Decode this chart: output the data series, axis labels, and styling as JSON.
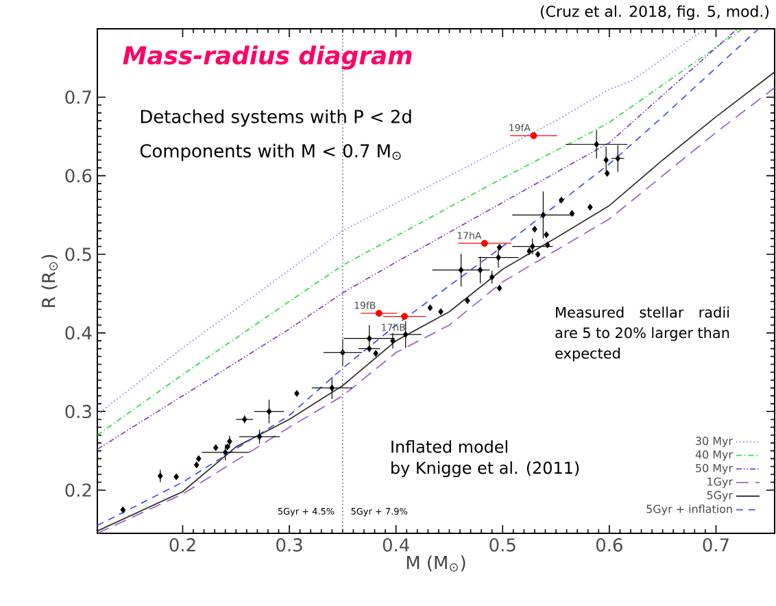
{
  "chart_data": {
    "type": "line",
    "title": "Mass-radius diagram",
    "xlabel": "M (M$_{⊙}$)",
    "ylabel": "R (R$_{⊙}$)",
    "xlim": [
      0.12,
      0.755
    ],
    "ylim": [
      0.145,
      0.787
    ],
    "xticks": [
      0.2,
      0.3,
      0.4,
      0.5,
      0.6,
      0.7
    ],
    "yticks": [
      0.2,
      0.3,
      0.4,
      0.5,
      0.6,
      0.7
    ],
    "grid": false,
    "legend": "bottom right",
    "series": [
      {
        "name": "30 Myr",
        "color": "#8080ff",
        "line_style": "dotted",
        "x": [
          0.12,
          0.2,
          0.3,
          0.35,
          0.45,
          0.5,
          0.55,
          0.6,
          0.62,
          0.69
        ],
        "values": [
          0.296,
          0.381,
          0.48,
          0.53,
          0.6,
          0.635,
          0.67,
          0.71,
          0.72,
          0.787
        ]
      },
      {
        "name": "40 Myr",
        "color": "#33dd44",
        "line_style": "dash-dot",
        "x": [
          0.12,
          0.2,
          0.3,
          0.35,
          0.45,
          0.5,
          0.58,
          0.6,
          0.725
        ],
        "values": [
          0.27,
          0.347,
          0.44,
          0.486,
          0.56,
          0.597,
          0.653,
          0.668,
          0.787
        ]
      },
      {
        "name": "50 Myr",
        "color": "#8844cc",
        "line_style": "dash-dot-dot",
        "x": [
          0.12,
          0.2,
          0.3,
          0.35,
          0.4,
          0.5,
          0.6,
          0.72
        ],
        "values": [
          0.252,
          0.32,
          0.405,
          0.451,
          0.49,
          0.566,
          0.642,
          0.787
        ]
      },
      {
        "name": "1Gyr",
        "color": "#9966cc",
        "line_style": "long-dashed",
        "x": [
          0.12,
          0.2,
          0.3,
          0.35,
          0.4,
          0.45,
          0.5,
          0.6,
          0.7,
          0.755
        ],
        "values": [
          0.145,
          0.195,
          0.28,
          0.32,
          0.375,
          0.41,
          0.465,
          0.545,
          0.655,
          0.712
        ]
      },
      {
        "name": "5Gyr",
        "color": "#333333",
        "line_style": "solid",
        "x": [
          0.12,
          0.2,
          0.25,
          0.3,
          0.35,
          0.4,
          0.45,
          0.5,
          0.55,
          0.6,
          0.65,
          0.7,
          0.755
        ],
        "values": [
          0.148,
          0.198,
          0.255,
          0.29,
          0.333,
          0.39,
          0.427,
          0.481,
          0.521,
          0.562,
          0.62,
          0.675,
          0.732
        ]
      },
      {
        "name": "5Gyr + inflation",
        "color": "#4455ee",
        "line_style": "dashed",
        "x": [
          0.12,
          0.2,
          0.3,
          0.35,
          0.4,
          0.5,
          0.6,
          0.65,
          0.74
        ],
        "values": [
          0.155,
          0.21,
          0.295,
          0.355,
          0.41,
          0.51,
          0.615,
          0.675,
          0.787
        ]
      },
      {
        "type": "scatter",
        "color": "#000000",
        "marker": "diamond",
        "x": [
          0.144,
          0.179,
          0.194,
          0.213,
          0.215,
          0.231,
          0.24,
          0.242,
          0.244,
          0.258,
          0.272,
          0.281,
          0.307,
          0.34,
          0.35,
          0.375,
          0.375,
          0.381,
          0.397,
          0.409,
          0.432,
          0.442,
          0.467,
          0.461,
          0.479,
          0.49,
          0.497,
          0.496,
          0.497,
          0.525,
          0.528,
          0.533,
          0.53,
          0.541,
          0.542,
          0.538,
          0.555,
          0.565,
          0.582,
          0.588,
          0.597,
          0.598,
          0.608
        ],
        "values": [
          0.175,
          0.218,
          0.217,
          0.232,
          0.24,
          0.254,
          0.248,
          0.255,
          0.262,
          0.29,
          0.268,
          0.3,
          0.323,
          0.33,
          0.375,
          0.393,
          0.38,
          0.374,
          0.39,
          0.398,
          0.432,
          0.427,
          0.441,
          0.48,
          0.48,
          0.471,
          0.457,
          0.496,
          0.509,
          0.504,
          0.51,
          0.5,
          0.532,
          0.525,
          0.512,
          0.55,
          0.569,
          0.552,
          0.56,
          0.64,
          0.62,
          0.603,
          0.622
        ],
        "xerrors": [
          null,
          null,
          null,
          null,
          null,
          null,
          0.022,
          null,
          null,
          0.008,
          0.019,
          0.014,
          null,
          0.019,
          0.018,
          0.024,
          0.01,
          null,
          null,
          0.015,
          null,
          null,
          null,
          0.027,
          null,
          null,
          null,
          0.019,
          null,
          null,
          0.019,
          null,
          null,
          null,
          null,
          0.029,
          null,
          null,
          null,
          0.029,
          null,
          null,
          0.006
        ],
        "errors": [
          null,
          0.008,
          null,
          null,
          null,
          null,
          0.01,
          null,
          0.007,
          0.005,
          0.009,
          0.015,
          null,
          0.014,
          0.017,
          0.017,
          null,
          null,
          0.01,
          0.017,
          null,
          null,
          null,
          0.021,
          0.017,
          0.008,
          null,
          0.013,
          null,
          0.005,
          0.01,
          null,
          null,
          null,
          null,
          0.03,
          null,
          null,
          null,
          0.018,
          0.017,
          null,
          0.017
        ]
      },
      {
        "type": "scatter",
        "color": "#ff0000",
        "marker": "circle",
        "x": [
          0.384,
          0.408,
          0.483,
          0.529
        ],
        "values": [
          0.425,
          0.421,
          0.514,
          0.651
        ],
        "xerrors": [
          0.017,
          0.02,
          0.025,
          0.022
        ]
      }
    ],
    "ref_lines": [
      {
        "axis": "x",
        "value": 0.35,
        "color": "#777777",
        "line_style": "dotted"
      }
    ],
    "annotations": [
      "(Cruz et al. 2018, fig. 5, mod.)",
      "Detached systems with P < 2d",
      "Components with M < 0.7 M$_{⊙}$",
      "Measured stellar radii are 5 to 20% larger than expected",
      "Inflated model",
      "by Knigge et al. (2011)",
      "5Gyr + 4.5%",
      "5Gyr + 7.9%",
      {
        "text": "19fB",
        "x": 0.384,
        "y": 0.425
      },
      {
        "text": "17hB",
        "x": 0.408,
        "y": 0.421
      },
      {
        "text": "17hA",
        "x": 0.483,
        "y": 0.514
      },
      {
        "text": "19fA",
        "x": 0.529,
        "y": 0.651
      }
    ]
  }
}
